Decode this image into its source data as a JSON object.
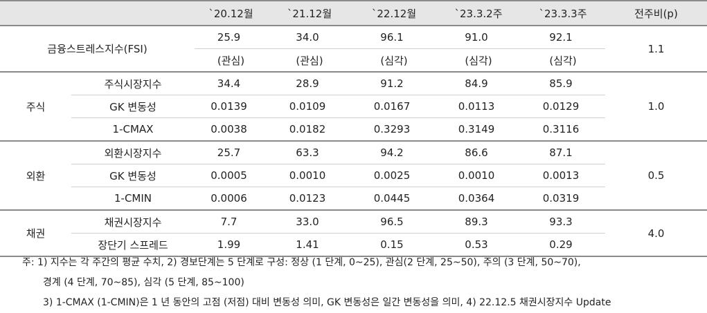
{
  "headers": [
    "`20.12월",
    "`21.12월",
    "`22.12월",
    "`23.3.2주",
    "`23.3.3주",
    "전주비(p)"
  ],
  "fsi": {
    "label": "금융스트레스지수(FSI)",
    "values": [
      "25.9",
      "34.0",
      "96.1",
      "91.0",
      "92.1"
    ],
    "stages": [
      "(관심)",
      "(관심)",
      "(심각)",
      "(심각)",
      "(심각)"
    ],
    "change": "1.1"
  },
  "groups": [
    {
      "name": "주식",
      "change": "1.0",
      "rows": [
        {
          "label": "주식시장지수",
          "values": [
            "34.4",
            "28.9",
            "91.2",
            "84.9",
            "85.9"
          ]
        },
        {
          "label": "GK 변동성",
          "values": [
            "0.0139",
            "0.0109",
            "0.0167",
            "0.0113",
            "0.0129"
          ]
        },
        {
          "label": "1-CMAX",
          "values": [
            "0.0038",
            "0.0182",
            "0.3293",
            "0.3149",
            "0.3116"
          ]
        }
      ]
    },
    {
      "name": "외환",
      "change": "0.5",
      "rows": [
        {
          "label": "외환시장지수",
          "values": [
            "25.7",
            "63.3",
            "94.2",
            "86.6",
            "87.1"
          ]
        },
        {
          "label": "GK 변동성",
          "values": [
            "0.0005",
            "0.0010",
            "0.0025",
            "0.0010",
            "0.0013"
          ]
        },
        {
          "label": "1-CMIN",
          "values": [
            "0.0006",
            "0.0123",
            "0.0445",
            "0.0364",
            "0.0319"
          ]
        }
      ]
    },
    {
      "name": "채권",
      "change": "4.0",
      "rows": [
        {
          "label": "채권시장지수",
          "values": [
            "7.7",
            "33.0",
            "96.5",
            "89.3",
            "93.3"
          ]
        },
        {
          "label": "장단기 스프레드",
          "values": [
            "1.99",
            "1.41",
            "0.15",
            "0.53",
            "0.29"
          ]
        }
      ]
    }
  ],
  "notes": [
    "주: 1) 지수는 각 주간의 평균 수치, 2) 경보단계는 5 단계로 구성: 정상 (1 단계, 0~25), 관심(2 단계, 25~50), 주의 (3 단계, 50~70),",
    "경계 (4 단계, 70~85), 심각 (5 단계, 85~100)",
    "3) 1-CMAX (1-CMIN)은 1 년 동안의 고점 (저점) 대비 변동성 의미, GK 변동성은 일간 변동성을 의미, 4) 22.12.5 채권시장지수 Update"
  ]
}
